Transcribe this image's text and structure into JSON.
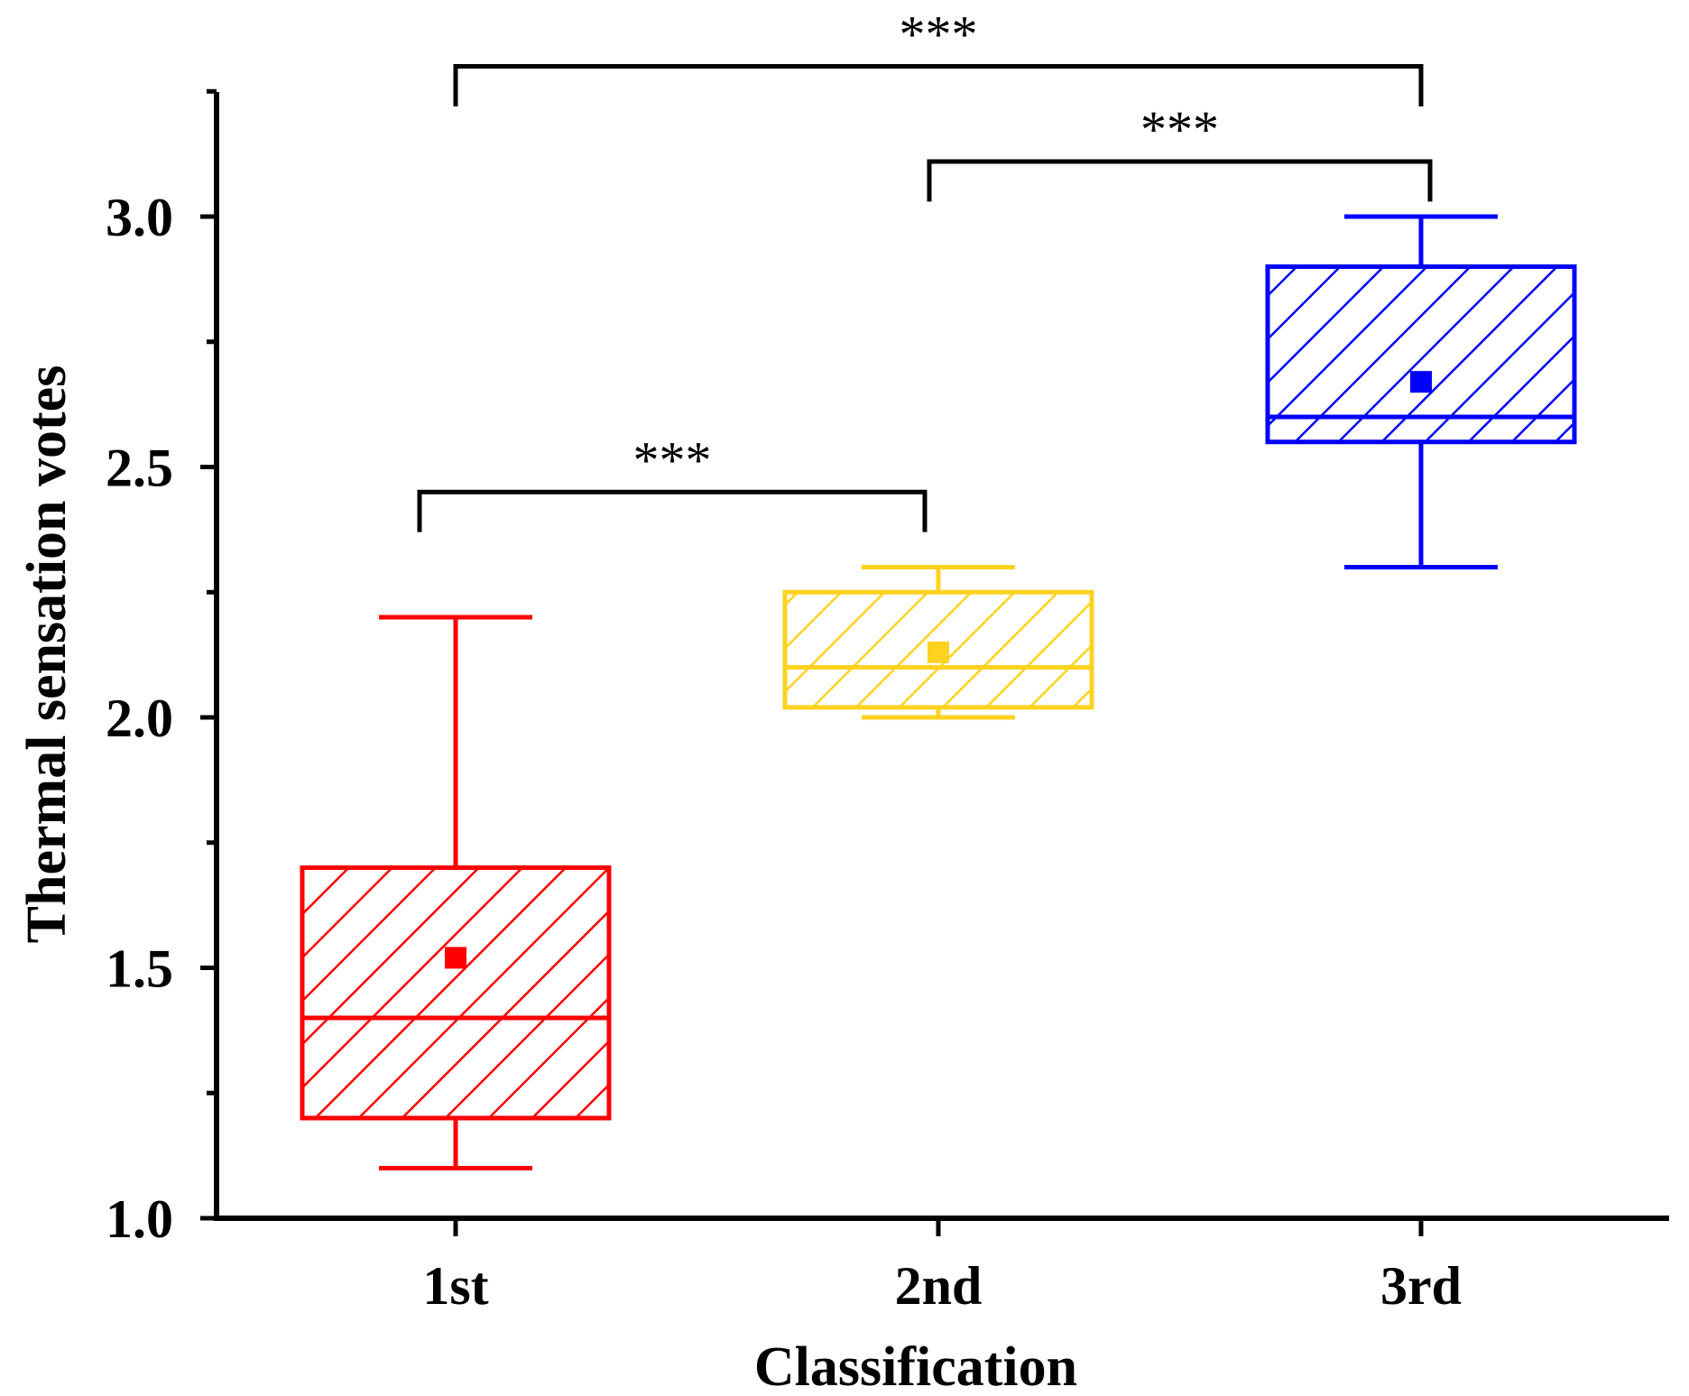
{
  "chart_data": {
    "type": "box",
    "title": "",
    "xlabel": "Classification",
    "ylabel": "Thermal sensation votes",
    "ylim": [
      1.0,
      3.25
    ],
    "yticks": [
      "1.0",
      "1.5",
      "2.0",
      "2.5",
      "3.0"
    ],
    "ytick_values": [
      1.0,
      1.5,
      2.0,
      2.5,
      3.0
    ],
    "categories": [
      "1st",
      "2nd",
      "3rd"
    ],
    "boxes": [
      {
        "name": "1st",
        "min": 1.1,
        "q1": 1.2,
        "median": 1.4,
        "q3": 1.7,
        "max": 2.2,
        "mean": 1.52,
        "color": "#ff0000"
      },
      {
        "name": "2nd",
        "min": 2.0,
        "q1": 2.02,
        "median": 2.1,
        "q3": 2.25,
        "max": 2.3,
        "mean": 2.13,
        "color": "#ffd21f"
      },
      {
        "name": "3rd",
        "min": 2.3,
        "q1": 2.55,
        "median": 2.6,
        "q3": 2.9,
        "max": 3.0,
        "mean": 2.67,
        "color": "#0000ff"
      }
    ],
    "significance": [
      {
        "from": "1st",
        "to": "2nd",
        "label": "***",
        "y": 2.45,
        "drop": 2.37
      },
      {
        "from": "2nd",
        "to": "3rd",
        "label": "***",
        "y": 3.11,
        "drop": 3.03
      },
      {
        "from": "1st",
        "to": "3rd",
        "label": "***",
        "y": 3.3,
        "drop": 3.22
      }
    ]
  }
}
